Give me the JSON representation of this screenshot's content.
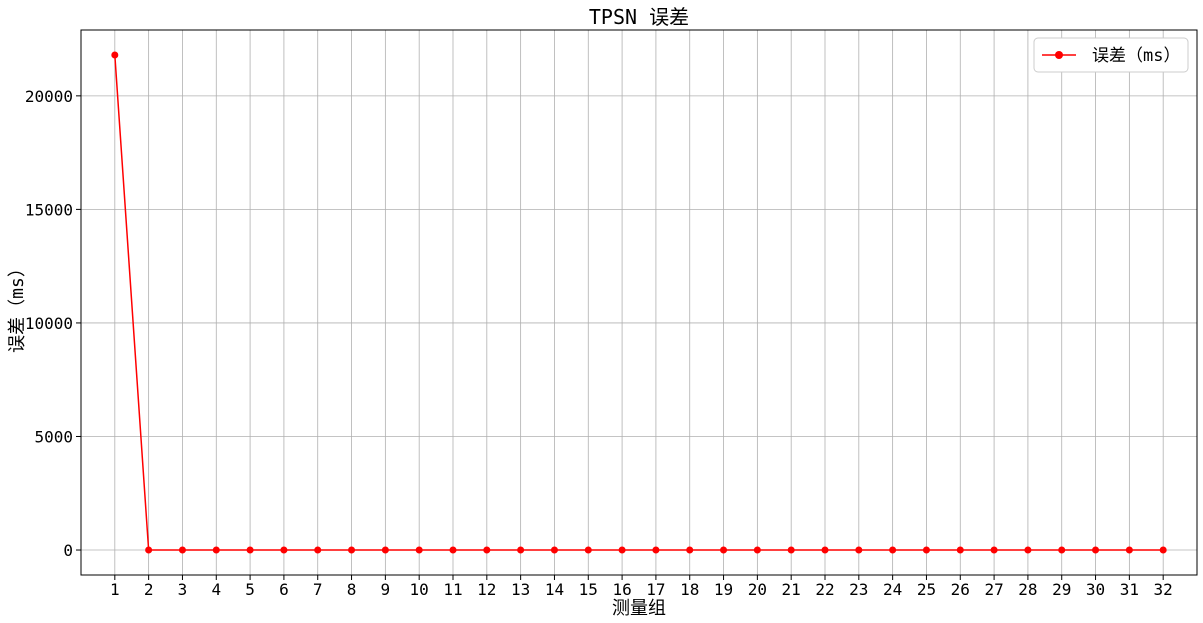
{
  "chart_data": {
    "type": "line",
    "title": "TPSN 误差",
    "xlabel": "测量组",
    "ylabel": "误差（ms）",
    "x": [
      1,
      2,
      3,
      4,
      5,
      6,
      7,
      8,
      9,
      10,
      11,
      12,
      13,
      14,
      15,
      16,
      17,
      18,
      19,
      20,
      21,
      22,
      23,
      24,
      25,
      26,
      27,
      28,
      29,
      30,
      31,
      32
    ],
    "series": [
      {
        "name": "误差（ms）",
        "color": "#ff0000",
        "marker": "circle",
        "values": [
          21800,
          1,
          1,
          1,
          1,
          1,
          1,
          1,
          1,
          1,
          1,
          1,
          1,
          1,
          1,
          1,
          1,
          1,
          1,
          1,
          1,
          1,
          1,
          1,
          1,
          1,
          1,
          1,
          1,
          1,
          1,
          1
        ]
      }
    ],
    "xticks": [
      1,
      2,
      3,
      4,
      5,
      6,
      7,
      8,
      9,
      10,
      11,
      12,
      13,
      14,
      15,
      16,
      17,
      18,
      19,
      20,
      21,
      22,
      23,
      24,
      25,
      26,
      27,
      28,
      29,
      30,
      31,
      32
    ],
    "yticks": [
      0,
      5000,
      10000,
      15000,
      20000
    ],
    "xlim": [
      0,
      33
    ],
    "ylim": [
      -1100,
      22900
    ],
    "grid": true,
    "legend_position": "top-right"
  }
}
